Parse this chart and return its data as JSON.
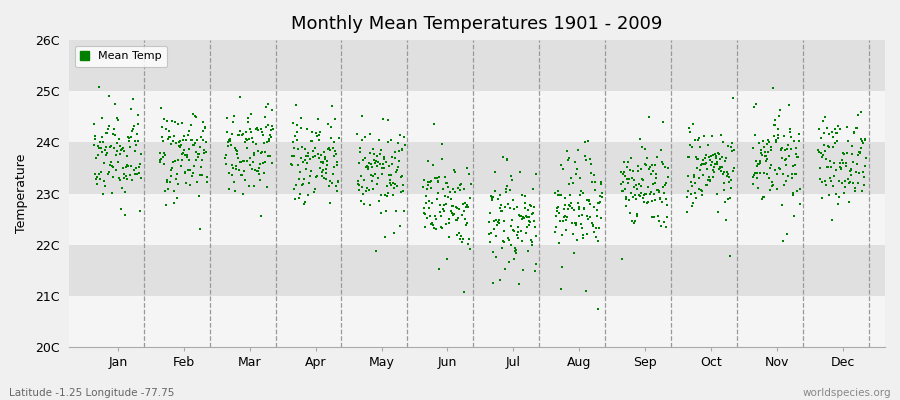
{
  "title": "Monthly Mean Temperatures 1901 - 2009",
  "ylabel": "Temperature",
  "ylim": [
    20.0,
    26.0
  ],
  "ytick_labels": [
    "20C",
    "21C",
    "22C",
    "23C",
    "24C",
    "25C",
    "26C"
  ],
  "ytick_values": [
    20,
    21,
    22,
    23,
    24,
    25,
    26
  ],
  "month_labels": [
    "Jan",
    "Feb",
    "Mar",
    "Apr",
    "May",
    "Jun",
    "Jul",
    "Aug",
    "Sep",
    "Oct",
    "Nov",
    "Dec"
  ],
  "dot_color": "#008000",
  "bg_color": "#ebebeb",
  "band_color_light": "#f5f5f5",
  "band_color_dark": "#e0e0e0",
  "title_fontsize": 13,
  "legend_label": "Mean Temp",
  "bottom_left": "Latitude -1.25 Longitude -77.75",
  "bottom_right": "worldspecies.org",
  "marker": "s",
  "marker_size": 2,
  "monthly_base": [
    23.75,
    23.72,
    23.8,
    23.68,
    23.45,
    22.75,
    22.45,
    22.75,
    23.1,
    23.45,
    23.7,
    23.72
  ],
  "monthly_std": [
    0.42,
    0.42,
    0.42,
    0.4,
    0.45,
    0.48,
    0.52,
    0.48,
    0.38,
    0.42,
    0.38,
    0.42
  ],
  "seed": 42,
  "n_years": 109,
  "start_year": 1901
}
